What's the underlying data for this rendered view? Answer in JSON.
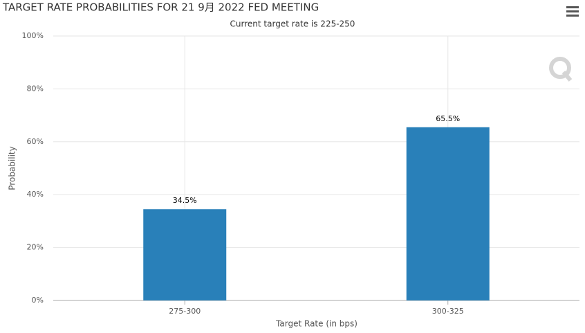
{
  "chart_data": {
    "type": "bar",
    "title": "TARGET RATE PROBABILITIES FOR 21 9月 2022 FED MEETING",
    "subtitle": "Current target rate is 225-250",
    "x_label": "Target Rate (in bps)",
    "y_label": "Probability",
    "categories": [
      "275-300",
      "300-325"
    ],
    "values": [
      34.5,
      65.5
    ],
    "value_labels": [
      "34.5%",
      "65.5%"
    ],
    "color": "#2980b9",
    "ylim": [
      0,
      100
    ],
    "yticks": [
      {
        "value": 0,
        "label": "0%"
      },
      {
        "value": 20,
        "label": "20%"
      },
      {
        "value": 40,
        "label": "40%"
      },
      {
        "value": 60,
        "label": "60%"
      },
      {
        "value": 80,
        "label": "80%"
      },
      {
        "value": 100,
        "label": "100%"
      }
    ],
    "grid": true
  }
}
